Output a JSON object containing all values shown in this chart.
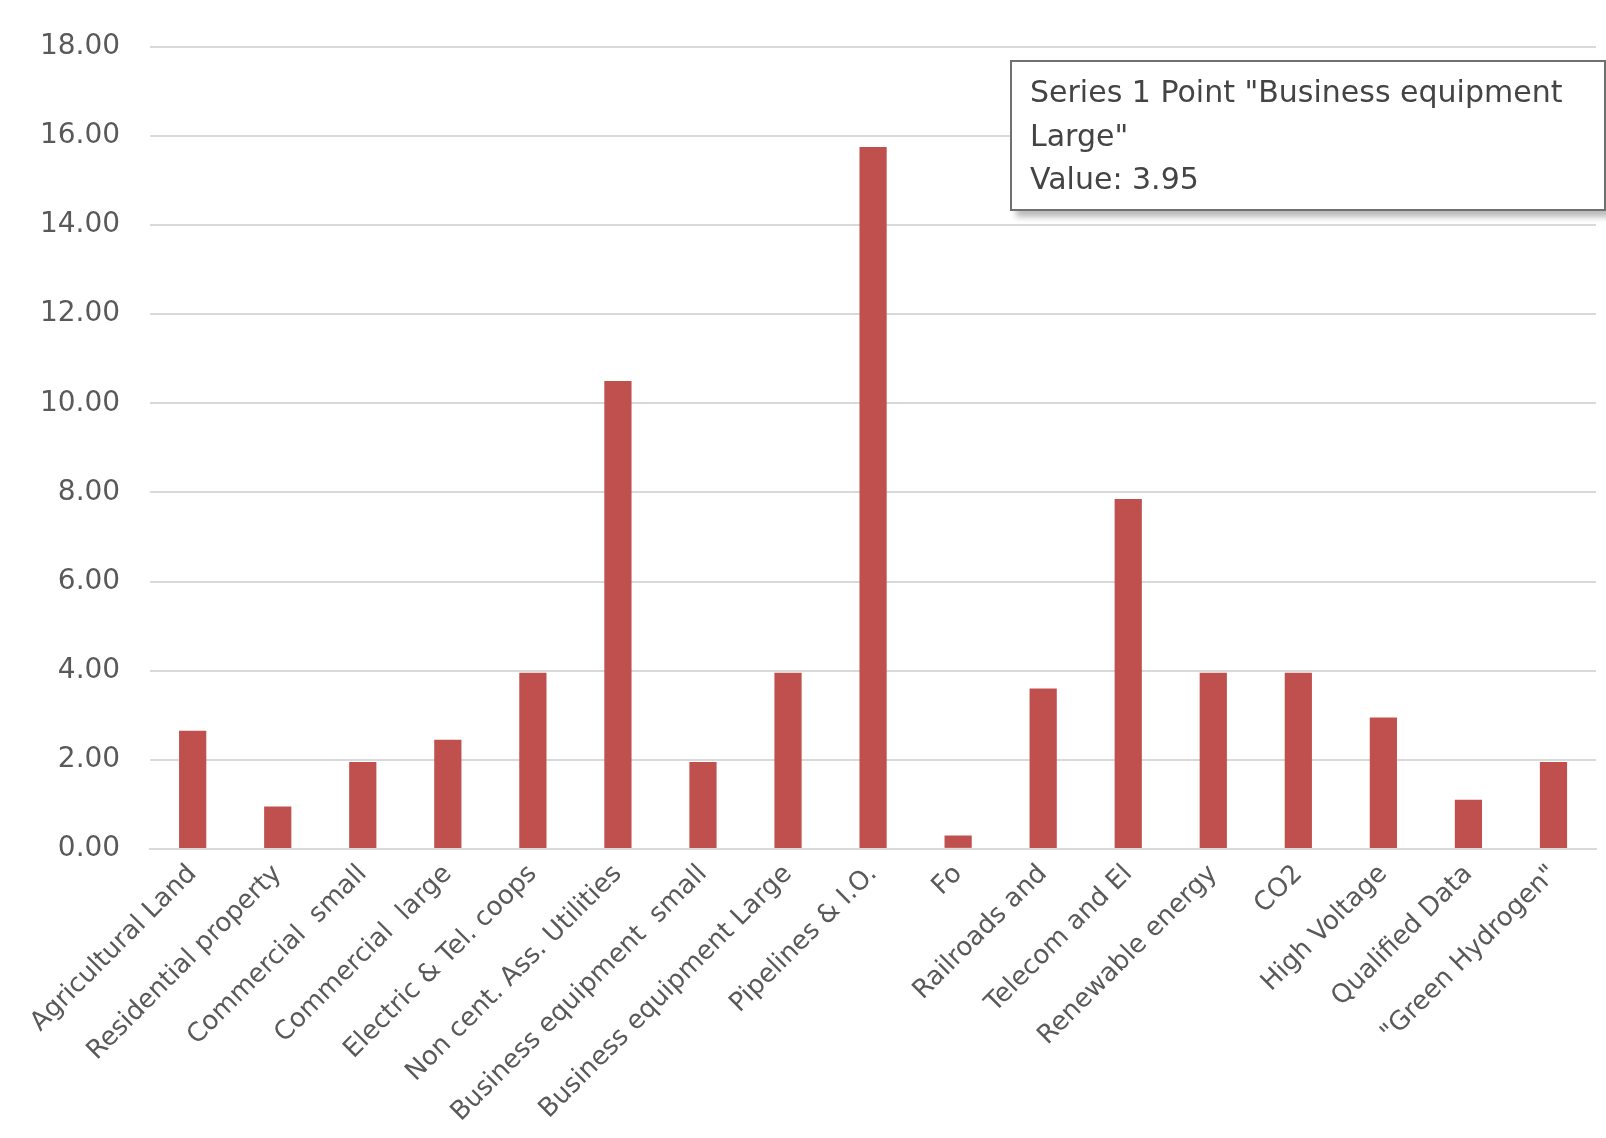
{
  "chart_data": {
    "type": "bar",
    "categories": [
      "Agricultural Land",
      "Residential property",
      "Commercial  small",
      "Commercial  large",
      "Electric & Tel. coops",
      "Non cent. Ass. Utilities",
      "Business equipment  small",
      "Business equipment Large",
      "Pipelines & I.O.",
      "Fo",
      "Railroads and",
      "Telecom and El",
      "Renewable energy",
      "CO2",
      "High Voltage",
      "Qualified Data",
      "\"Green Hydrogen\""
    ],
    "values": [
      2.65,
      0.95,
      1.95,
      2.45,
      3.95,
      10.5,
      1.95,
      3.95,
      15.75,
      0.3,
      3.6,
      7.85,
      3.95,
      3.95,
      2.95,
      1.1,
      1.95
    ],
    "color": "#c0504d",
    "ylim": [
      0,
      18
    ],
    "yticks": [
      {
        "value": 0,
        "label": "0.00"
      },
      {
        "value": 2,
        "label": "2.00"
      },
      {
        "value": 4,
        "label": "4.00"
      },
      {
        "value": 6,
        "label": "6.00"
      },
      {
        "value": 8,
        "label": "8.00"
      },
      {
        "value": 10,
        "label": "10.00"
      },
      {
        "value": 12,
        "label": "12.00"
      },
      {
        "value": 14,
        "label": "14.00"
      },
      {
        "value": 16,
        "label": "16.00"
      },
      {
        "value": 18,
        "label": "18.00"
      }
    ],
    "grid": "y",
    "annotations": [
      "Series 1 Point \"Business equipment Large\"",
      "Value: 3.95"
    ]
  }
}
